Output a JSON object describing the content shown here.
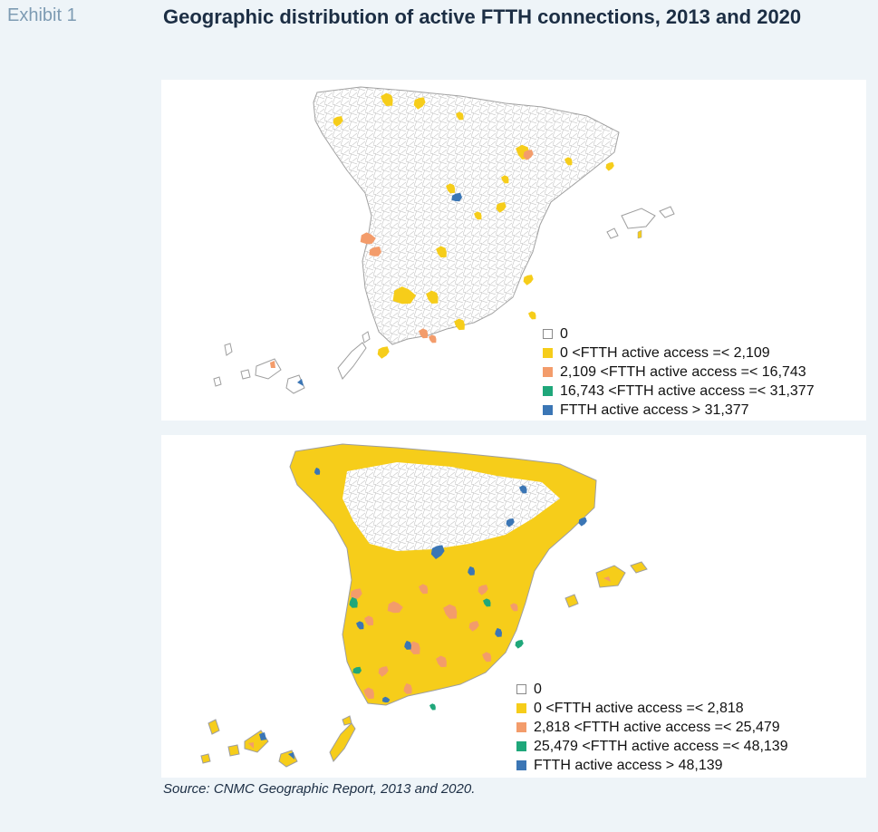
{
  "exhibit_label": "Exhibit 1",
  "title": "Geographic distribution of active FTTH connections, 2013 and 2020",
  "source": "Source: CNMC Geographic Report, 2013 and 2020.",
  "colors": {
    "zero": "#ffffff",
    "low": "#f6cd1a",
    "mid": "#f39c6b",
    "high": "#1fa77a",
    "top": "#3b76b5",
    "border": "#b8b8b8"
  },
  "maps": [
    {
      "year": "2013",
      "legend": [
        {
          "key": "zero",
          "label": "0"
        },
        {
          "key": "low",
          "label": "0 <FTTH active access =< 2,109"
        },
        {
          "key": "mid",
          "label": "2,109 <FTTH active access =< 16,743"
        },
        {
          "key": "high",
          "label": "16,743 <FTTH active access =< 31,377"
        },
        {
          "key": "top",
          "label": "FTTH active access > 31,377"
        }
      ]
    },
    {
      "year": "2020",
      "legend": [
        {
          "key": "zero",
          "label": "0"
        },
        {
          "key": "low",
          "label": "0 <FTTH active access =< 2,818"
        },
        {
          "key": "mid",
          "label": "2,818 <FTTH active access =< 25,479"
        },
        {
          "key": "high",
          "label": "25,479 <FTTH active access =< 48,139"
        },
        {
          "key": "top",
          "label": "FTTH active access > 48,139"
        }
      ]
    }
  ]
}
